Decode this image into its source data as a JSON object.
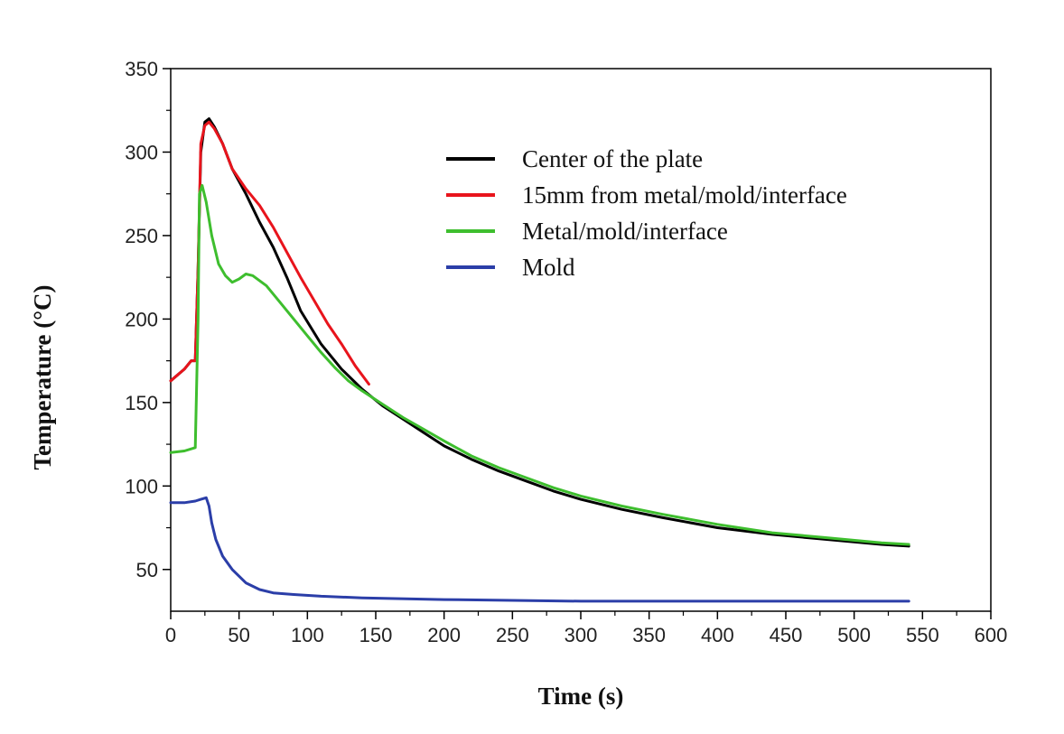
{
  "chart_data": {
    "type": "line",
    "title": "",
    "xlabel": "Time (s)",
    "ylabel": "Temperature (°C)",
    "xlim": [
      0,
      600
    ],
    "ylim": [
      25,
      350
    ],
    "x_ticks": [
      0,
      50,
      100,
      150,
      200,
      250,
      300,
      350,
      400,
      450,
      500,
      550,
      600
    ],
    "y_ticks": [
      50,
      100,
      150,
      200,
      250,
      300,
      350
    ],
    "grid": false,
    "legend_position": "top-right",
    "series": [
      {
        "name": "Center of the plate",
        "color": "#000000",
        "points": [
          [
            0,
            163
          ],
          [
            10,
            170
          ],
          [
            15,
            175
          ],
          [
            18,
            175
          ],
          [
            20,
            230
          ],
          [
            22,
            300
          ],
          [
            25,
            318
          ],
          [
            28,
            320
          ],
          [
            32,
            315
          ],
          [
            38,
            305
          ],
          [
            45,
            290
          ],
          [
            55,
            275
          ],
          [
            65,
            258
          ],
          [
            75,
            243
          ],
          [
            85,
            225
          ],
          [
            95,
            205
          ],
          [
            110,
            185
          ],
          [
            125,
            170
          ],
          [
            140,
            158
          ],
          [
            155,
            148
          ],
          [
            170,
            140
          ],
          [
            185,
            132
          ],
          [
            200,
            124
          ],
          [
            220,
            116
          ],
          [
            240,
            109
          ],
          [
            260,
            103
          ],
          [
            280,
            97
          ],
          [
            300,
            92
          ],
          [
            330,
            86
          ],
          [
            360,
            81
          ],
          [
            400,
            75
          ],
          [
            440,
            71
          ],
          [
            480,
            68
          ],
          [
            520,
            65
          ],
          [
            540,
            64
          ]
        ]
      },
      {
        "name": "15mm from metal/mold/interface",
        "color": "#e8141c",
        "points": [
          [
            0,
            163
          ],
          [
            10,
            170
          ],
          [
            15,
            175
          ],
          [
            18,
            175
          ],
          [
            20,
            230
          ],
          [
            22,
            305
          ],
          [
            25,
            316
          ],
          [
            28,
            318
          ],
          [
            32,
            314
          ],
          [
            38,
            305
          ],
          [
            45,
            290
          ],
          [
            55,
            278
          ],
          [
            65,
            268
          ],
          [
            75,
            255
          ],
          [
            85,
            240
          ],
          [
            95,
            225
          ],
          [
            105,
            211
          ],
          [
            115,
            197
          ],
          [
            125,
            185
          ],
          [
            135,
            172
          ],
          [
            145,
            161
          ]
        ]
      },
      {
        "name": "Metal/mold/interface",
        "color": "#3ebe2e",
        "points": [
          [
            0,
            120
          ],
          [
            10,
            121
          ],
          [
            18,
            123
          ],
          [
            20,
            200
          ],
          [
            21,
            275
          ],
          [
            23,
            280
          ],
          [
            26,
            270
          ],
          [
            30,
            250
          ],
          [
            35,
            233
          ],
          [
            40,
            226
          ],
          [
            45,
            222
          ],
          [
            50,
            224
          ],
          [
            55,
            227
          ],
          [
            60,
            226
          ],
          [
            70,
            220
          ],
          [
            80,
            210
          ],
          [
            90,
            200
          ],
          [
            100,
            190
          ],
          [
            110,
            180
          ],
          [
            120,
            171
          ],
          [
            130,
            163
          ],
          [
            140,
            157
          ],
          [
            155,
            149
          ],
          [
            170,
            141
          ],
          [
            185,
            134
          ],
          [
            200,
            127
          ],
          [
            220,
            118
          ],
          [
            240,
            111
          ],
          [
            260,
            105
          ],
          [
            280,
            99
          ],
          [
            300,
            94
          ],
          [
            330,
            88
          ],
          [
            360,
            83
          ],
          [
            400,
            77
          ],
          [
            440,
            72
          ],
          [
            480,
            69
          ],
          [
            520,
            66
          ],
          [
            540,
            65
          ]
        ]
      },
      {
        "name": "Mold",
        "color": "#2b3ea8",
        "points": [
          [
            0,
            90
          ],
          [
            10,
            90
          ],
          [
            18,
            91
          ],
          [
            22,
            92
          ],
          [
            26,
            93
          ],
          [
            28,
            88
          ],
          [
            30,
            78
          ],
          [
            33,
            68
          ],
          [
            38,
            58
          ],
          [
            45,
            50
          ],
          [
            55,
            42
          ],
          [
            65,
            38
          ],
          [
            75,
            36
          ],
          [
            90,
            35
          ],
          [
            110,
            34
          ],
          [
            140,
            33
          ],
          [
            200,
            32
          ],
          [
            300,
            31
          ],
          [
            400,
            31
          ],
          [
            500,
            31
          ],
          [
            540,
            31
          ]
        ]
      }
    ]
  }
}
